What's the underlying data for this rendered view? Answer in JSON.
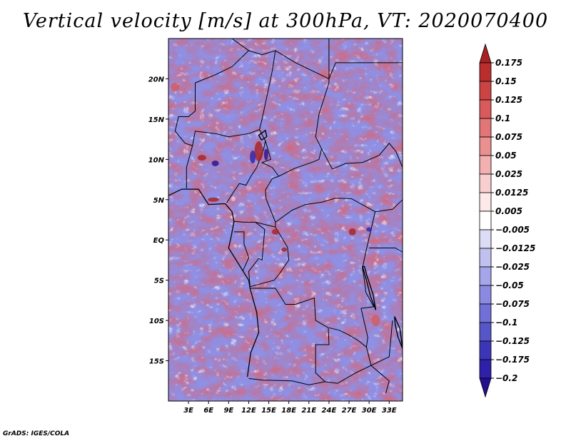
{
  "title": "Vertical velocity [m/s] at 300hPa, VT: 2020070400",
  "credit": "GrADS: IGES/COLA",
  "colors": {
    "strong_positive": "#a52020",
    "neutral": "#ffffff",
    "strong_negative": "#2a1aa0",
    "boundaries": "#000000"
  },
  "map": {
    "lon_range": [
      0,
      35
    ],
    "lat_range": [
      -20,
      25
    ],
    "lon_ticks": [
      "3E",
      "6E",
      "9E",
      "12E",
      "15E",
      "18E",
      "21E",
      "24E",
      "27E",
      "30E",
      "33E"
    ],
    "lat_ticks": [
      "20N",
      "15N",
      "10N",
      "5N",
      "EQ",
      "5S",
      "10S",
      "15S"
    ]
  },
  "colorbar": {
    "levels": [
      "0.175",
      "0.15",
      "0.125",
      "0.1",
      "0.075",
      "0.05",
      "0.025",
      "0.0125",
      "0.005",
      "-0.005",
      "-0.0125",
      "-0.025",
      "-0.05",
      "-0.075",
      "-0.1",
      "-0.125",
      "-0.175",
      "-0.2"
    ],
    "colors": [
      "#a82020",
      "#bb2e2e",
      "#cb4343",
      "#d85a5a",
      "#e27575",
      "#ea9090",
      "#f2b0b0",
      "#f8cfcf",
      "#fde9e9",
      "#ffffff",
      "#dcdcf6",
      "#c1c1f0",
      "#a5a5ea",
      "#8a8ae2",
      "#7070d8",
      "#5656c8",
      "#3d35b8",
      "#2e20a8",
      "#22108e"
    ]
  }
}
